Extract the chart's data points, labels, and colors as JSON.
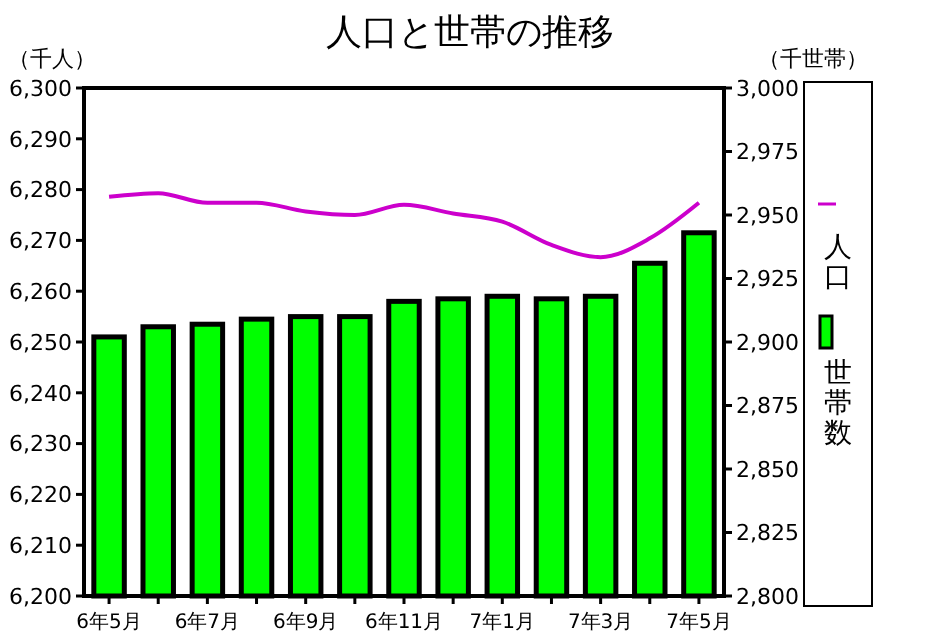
{
  "chart_data": {
    "type": "bar",
    "title": "人口と世帯の推移",
    "ylabel": "（千人）",
    "y2label": "（千世帯）",
    "categories": [
      "6年5月",
      null,
      "6年7月",
      null,
      "6年9月",
      null,
      "6年11月",
      null,
      "7年1月",
      null,
      "7年3月",
      null,
      "7年5月"
    ],
    "series": [
      {
        "name": "人口",
        "type": "line",
        "axis": "y",
        "color": "#cc00cc",
        "values": [
          6278.6,
          6279.3,
          6277.4,
          6277.4,
          6275.7,
          6275.0,
          6277.0,
          6275.3,
          6273.7,
          6269.1,
          6266.7,
          6270.4,
          6277.4
        ]
      },
      {
        "name": "世帯数",
        "axis": "y2",
        "color": "#00ff00",
        "values": [
          2902,
          2906,
          2907,
          2909,
          2910,
          2910,
          2916,
          2917,
          2918,
          2917,
          2918,
          2931,
          2943
        ]
      }
    ],
    "ylim": [
      6200,
      6300
    ],
    "yticks": [
      {
        "value": 6200,
        "label": "6,200"
      },
      {
        "value": 6210,
        "label": "6,210"
      },
      {
        "value": 6220,
        "label": "6,220"
      },
      {
        "value": 6230,
        "label": "6,230"
      },
      {
        "value": 6240,
        "label": "6,240"
      },
      {
        "value": 6250,
        "label": "6,250"
      },
      {
        "value": 6260,
        "label": "6,260"
      },
      {
        "value": 6270,
        "label": "6,270"
      },
      {
        "value": 6280,
        "label": "6,280"
      },
      {
        "value": 6290,
        "label": "6,290"
      },
      {
        "value": 6300,
        "label": "6,300"
      }
    ],
    "y2lim": [
      2800,
      3000
    ],
    "y2ticks": [
      {
        "value": 2800,
        "label": "2,800"
      },
      {
        "value": 2825,
        "label": "2,825"
      },
      {
        "value": 2850,
        "label": "2,850"
      },
      {
        "value": 2875,
        "label": "2,875"
      },
      {
        "value": 2900,
        "label": "2,900"
      },
      {
        "value": 2925,
        "label": "2,925"
      },
      {
        "value": 2950,
        "label": "2,950"
      },
      {
        "value": 2975,
        "label": "2,975"
      },
      {
        "value": 3000,
        "label": "3,000"
      }
    ],
    "grid": false,
    "legend": "right",
    "marker": "none",
    "line_style": "solid"
  }
}
